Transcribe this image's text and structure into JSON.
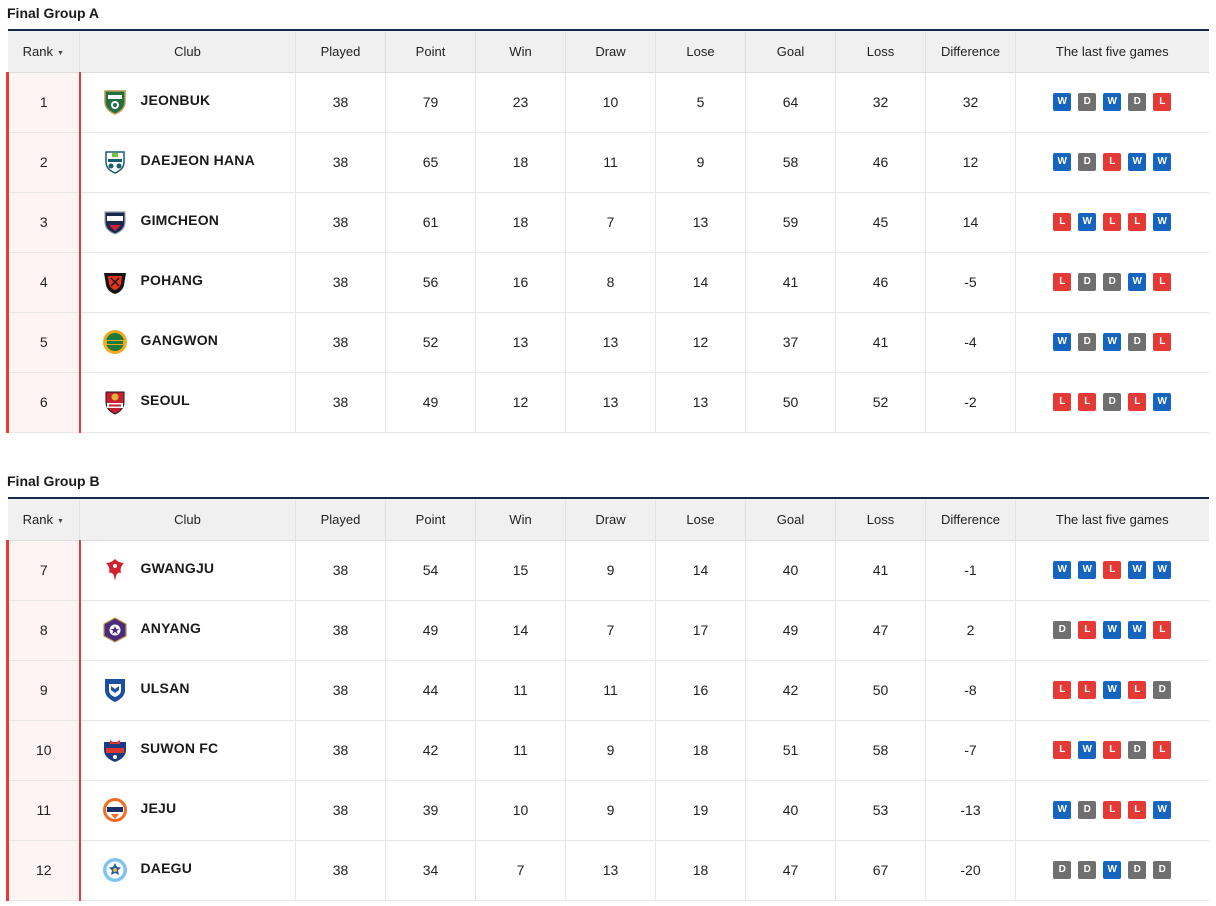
{
  "colors": {
    "win": "#1565c0",
    "draw": "#6f6f6f",
    "loss": "#e53935",
    "accent": "#e63b3b",
    "header_border": "#172a4d"
  },
  "columns": [
    "Rank",
    "Club",
    "Played",
    "Point",
    "Win",
    "Draw",
    "Lose",
    "Goal",
    "Loss",
    "Difference",
    "The last five games"
  ],
  "groups": [
    {
      "title": "Final Group A",
      "rows": [
        {
          "rank": "1",
          "club": "JEONBUK",
          "logo": "jeonbuk-logo-icon",
          "played": "38",
          "point": "79",
          "win": "23",
          "draw": "10",
          "lose": "5",
          "goal": "64",
          "loss": "32",
          "difference": "32",
          "form": [
            "W",
            "D",
            "W",
            "D",
            "L"
          ]
        },
        {
          "rank": "2",
          "club": "DAEJEON HANA",
          "logo": "daejeon-logo-icon",
          "played": "38",
          "point": "65",
          "win": "18",
          "draw": "11",
          "lose": "9",
          "goal": "58",
          "loss": "46",
          "difference": "12",
          "form": [
            "W",
            "D",
            "L",
            "W",
            "W"
          ]
        },
        {
          "rank": "3",
          "club": "GIMCHEON",
          "logo": "gimcheon-logo-icon",
          "played": "38",
          "point": "61",
          "win": "18",
          "draw": "7",
          "lose": "13",
          "goal": "59",
          "loss": "45",
          "difference": "14",
          "form": [
            "L",
            "W",
            "L",
            "L",
            "W"
          ]
        },
        {
          "rank": "4",
          "club": "POHANG",
          "logo": "pohang-logo-icon",
          "played": "38",
          "point": "56",
          "win": "16",
          "draw": "8",
          "lose": "14",
          "goal": "41",
          "loss": "46",
          "difference": "-5",
          "form": [
            "L",
            "D",
            "D",
            "W",
            "L"
          ]
        },
        {
          "rank": "5",
          "club": "GANGWON",
          "logo": "gangwon-logo-icon",
          "played": "38",
          "point": "52",
          "win": "13",
          "draw": "13",
          "lose": "12",
          "goal": "37",
          "loss": "41",
          "difference": "-4",
          "form": [
            "W",
            "D",
            "W",
            "D",
            "L"
          ]
        },
        {
          "rank": "6",
          "club": "SEOUL",
          "logo": "seoul-logo-icon",
          "played": "38",
          "point": "49",
          "win": "12",
          "draw": "13",
          "lose": "13",
          "goal": "50",
          "loss": "52",
          "difference": "-2",
          "form": [
            "L",
            "L",
            "D",
            "L",
            "W"
          ]
        }
      ]
    },
    {
      "title": "Final Group B",
      "rows": [
        {
          "rank": "7",
          "club": "GWANGJU",
          "logo": "gwangju-logo-icon",
          "played": "38",
          "point": "54",
          "win": "15",
          "draw": "9",
          "lose": "14",
          "goal": "40",
          "loss": "41",
          "difference": "-1",
          "form": [
            "W",
            "W",
            "L",
            "W",
            "W"
          ]
        },
        {
          "rank": "8",
          "club": "ANYANG",
          "logo": "anyang-logo-icon",
          "played": "38",
          "point": "49",
          "win": "14",
          "draw": "7",
          "lose": "17",
          "goal": "49",
          "loss": "47",
          "difference": "2",
          "form": [
            "D",
            "L",
            "W",
            "W",
            "L"
          ]
        },
        {
          "rank": "9",
          "club": "ULSAN",
          "logo": "ulsan-logo-icon",
          "played": "38",
          "point": "44",
          "win": "11",
          "draw": "11",
          "lose": "16",
          "goal": "42",
          "loss": "50",
          "difference": "-8",
          "form": [
            "L",
            "L",
            "W",
            "L",
            "D"
          ]
        },
        {
          "rank": "10",
          "club": "SUWON FC",
          "logo": "suwon-fc-logo-icon",
          "played": "38",
          "point": "42",
          "win": "11",
          "draw": "9",
          "lose": "18",
          "goal": "51",
          "loss": "58",
          "difference": "-7",
          "form": [
            "L",
            "W",
            "L",
            "D",
            "L"
          ]
        },
        {
          "rank": "11",
          "club": "JEJU",
          "logo": "jeju-logo-icon",
          "played": "38",
          "point": "39",
          "win": "10",
          "draw": "9",
          "lose": "19",
          "goal": "40",
          "loss": "53",
          "difference": "-13",
          "form": [
            "W",
            "D",
            "L",
            "L",
            "W"
          ]
        },
        {
          "rank": "12",
          "club": "DAEGU",
          "logo": "daegu-logo-icon",
          "played": "38",
          "point": "34",
          "win": "7",
          "draw": "13",
          "lose": "18",
          "goal": "47",
          "loss": "67",
          "difference": "-20",
          "form": [
            "D",
            "D",
            "W",
            "D",
            "D"
          ]
        }
      ]
    }
  ]
}
